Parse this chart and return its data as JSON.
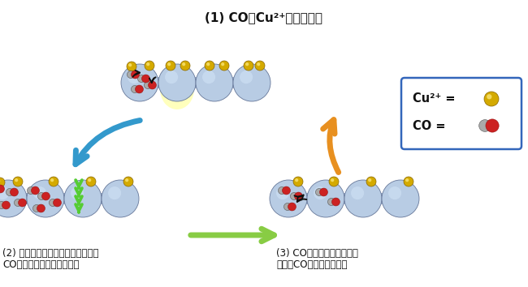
{
  "bg_color": "#ffffff",
  "figsize": [
    6.5,
    3.54
  ],
  "dpi": 100,
  "pore_color": "#b8cce4",
  "pore_edge": "#8899bb",
  "cu_color": "#d4aa00",
  "cu_highlight": "#ffee88",
  "c_color": "#aaaaaa",
  "o_color": "#cc2222",
  "arrow_blue": "#3399cc",
  "arrow_orange": "#e89020",
  "arrow_green": "#88cc44",
  "dark_arrow": "#222222",
  "legend_border": "#3366bb",
  "yellow_glow": "#ffff88",
  "green_chevron": "#55cc33",
  "title": "(1) COがCu²⁺に結合する",
  "label2_line1": "(2) ナノ細孔が大きくなり、新たに",
  "label2_line2": "COを取り込む空間ができる",
  "label3_line1": "(3) CO同士が交换しながら",
  "label3_line2": "さらにCOが取り込まれる",
  "legend_cu": "Cu²⁺ =",
  "legend_co": "CO ="
}
